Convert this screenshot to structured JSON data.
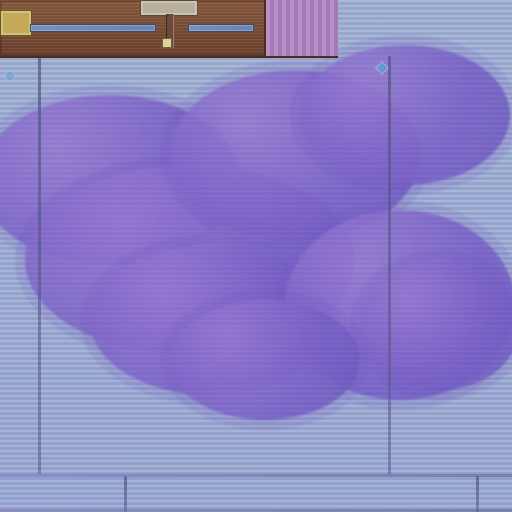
{
  "scene": {
    "name": "stage-background",
    "accent_colors": {
      "sky": "#9fb0d3",
      "cloud": "#7d63c4",
      "hud": "#7a4b36",
      "hud_panel": "#b88fc7",
      "meter": "#7a8fb8"
    },
    "icons": [
      "star-icon"
    ]
  }
}
